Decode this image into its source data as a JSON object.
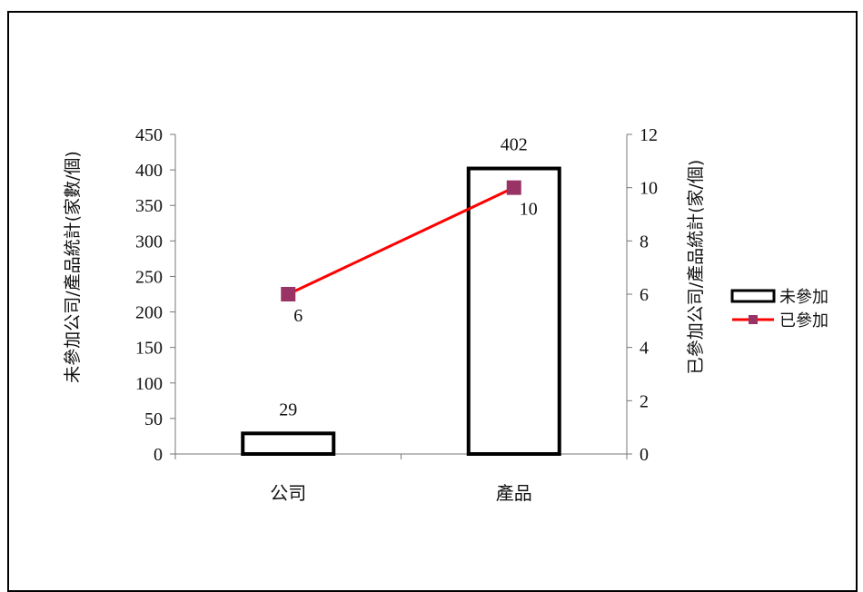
{
  "chart_data": {
    "type": "bar+line",
    "categories": [
      "公司",
      "產品"
    ],
    "series": [
      {
        "name": "未參加",
        "type": "bar",
        "axis": "left",
        "values": [
          29,
          402
        ]
      },
      {
        "name": "已參加",
        "type": "line",
        "axis": "right",
        "values": [
          6,
          10
        ],
        "color": "#ff0000",
        "marker_color": "#993366"
      }
    ],
    "ylabel": "未參加公司/產品統計(家數/個)",
    "y2label": "已參加公司/產品統計(家/個)",
    "ylim": [
      0,
      450
    ],
    "y2lim": [
      0,
      12
    ],
    "yticks": [
      "0",
      "50",
      "100",
      "150",
      "200",
      "250",
      "300",
      "350",
      "400",
      "450"
    ],
    "y2ticks": [
      "0",
      "2",
      "4",
      "6",
      "8",
      "10",
      "12"
    ],
    "legend_position": "right",
    "grid": false
  }
}
